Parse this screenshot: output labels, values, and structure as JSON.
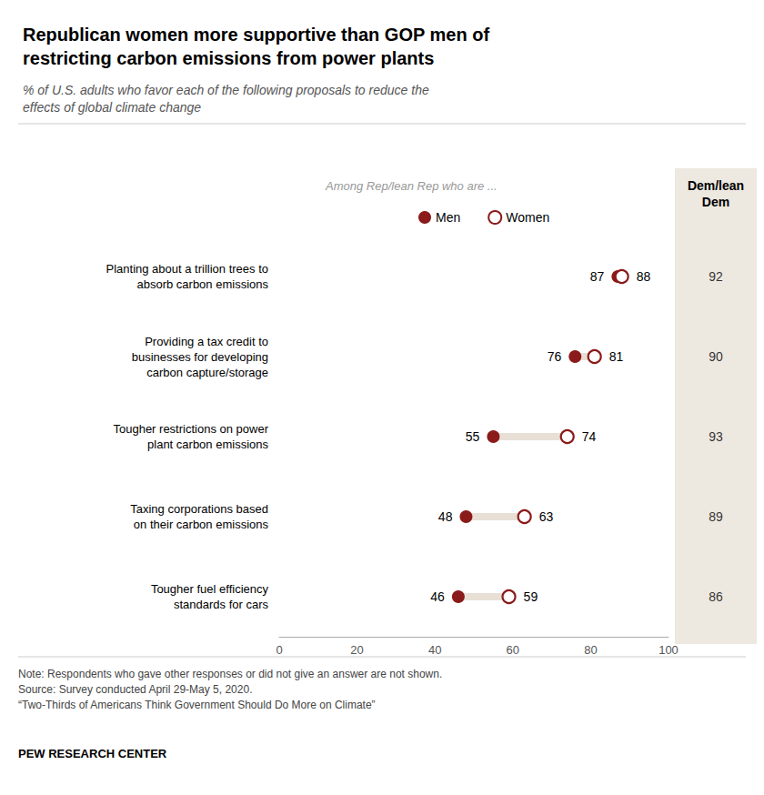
{
  "chart_data": {
    "type": "dumbbell",
    "title": "Republican women more supportive than GOP men of\nrestricting carbon emissions from power plants",
    "subtitle": "% of U.S. adults who favor each of the following proposals to reduce the\neffects of global climate change",
    "categories": [
      "Planting about a trillion trees to\nabsorb carbon emissions",
      "Providing a tax credit to\nbusinesses for developing\ncarbon capture/storage",
      "Tougher restrictions on power\nplant carbon emissions",
      "Taxing corporations based\non their carbon emissions",
      "Tougher fuel efficiency\nstandards for cars"
    ],
    "series": [
      {
        "name": "Men",
        "color": "#8B1A1A",
        "marker": "filled",
        "values": [
          87,
          76,
          55,
          48,
          46
        ]
      },
      {
        "name": "Women",
        "color": "#8B1A1A",
        "marker": "open",
        "values": [
          88,
          81,
          74,
          63,
          59
        ]
      },
      {
        "name": "Dem/lean\nDem",
        "type": "column",
        "color": "#EDE8E0",
        "values": [
          92,
          90,
          93,
          89,
          86
        ]
      }
    ],
    "connector_color": "#E8E0D5",
    "annotations": [
      "Among Rep/lean Rep who are ..."
    ],
    "note": "Note: Respondents who gave other responses or did not give an answer are not shown.\nSource: Survey conducted April 29-May 5, 2020.\n“Two-Thirds of Americans Think Government Should Do More on Climate”",
    "source": "PEW RESEARCH CENTER",
    "xlim": [
      0,
      100
    ],
    "xticks": [
      0,
      20,
      40,
      60,
      80,
      100
    ],
    "grid": false,
    "legend": "top",
    "data_labels": true
  }
}
